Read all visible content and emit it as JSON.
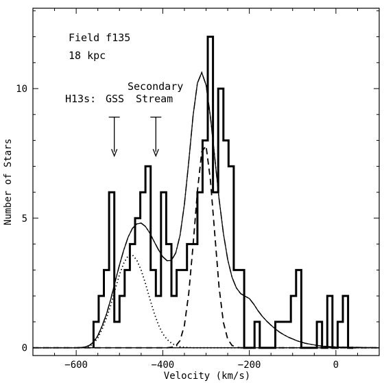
{
  "chart_data": {
    "type": "bar",
    "subtype": "histogram-with-model-curves",
    "xlabel": "Velocity (km/s)",
    "ylabel": "Number of Stars",
    "xlim": [
      -700,
      100
    ],
    "ylim": [
      -0.3,
      13.1
    ],
    "x_ticks": [
      -600,
      -400,
      -200,
      0
    ],
    "x_tick_labels": [
      "−600",
      "−400",
      "−200",
      "0"
    ],
    "y_ticks": [
      0,
      5,
      10
    ],
    "y_tick_labels": [
      "0",
      "5",
      "10"
    ],
    "bin_width": 12,
    "bin_edges": [
      -560,
      -548,
      -536,
      -524,
      -512,
      -500,
      -488,
      -476,
      -464,
      -452,
      -440,
      -428,
      -416,
      -404,
      -392,
      -380,
      -368,
      -356,
      -344,
      -332,
      -320,
      -308,
      -296,
      -284,
      -272,
      -260,
      -248,
      -236,
      -224,
      -212,
      -200,
      -188,
      -176,
      -164,
      -152,
      -140,
      -128,
      -116,
      -104,
      -92,
      -80,
      -68,
      -56,
      -44,
      -32,
      -20,
      -8,
      4,
      16,
      28,
      40
    ],
    "bin_counts": [
      1,
      2,
      3,
      6,
      1,
      2,
      3,
      4,
      5,
      6,
      7,
      3,
      2,
      6,
      4,
      2,
      3,
      3,
      4,
      4,
      6,
      8,
      12,
      6,
      10,
      8,
      7,
      3,
      3,
      0,
      0,
      1,
      0,
      0,
      0,
      1,
      1,
      1,
      2,
      3,
      0,
      0,
      0,
      1,
      0,
      2,
      0,
      1,
      2,
      0
    ],
    "series": [
      {
        "style": "solid",
        "values": [
          0.0,
          0.01,
          0.03,
          0.09,
          0.22,
          0.47,
          0.85,
          1.3,
          1.88,
          2.55,
          3.2,
          3.78,
          4.27,
          4.61,
          4.78,
          4.81,
          4.68,
          4.43,
          4.1,
          3.78,
          3.51,
          3.36,
          3.37,
          3.66,
          4.34,
          5.53,
          7.19,
          8.96,
          10.21,
          10.62,
          10.14,
          8.93,
          7.36,
          5.76,
          4.41,
          3.4,
          2.72,
          2.31,
          2.09,
          1.99,
          1.9,
          1.69,
          1.43,
          1.21,
          1.03,
          0.87,
          0.73,
          0.6,
          0.5,
          0.41,
          0.34,
          0.27,
          0.22,
          0.17,
          0.14,
          0.11,
          0.08,
          0.06,
          0.05,
          0.04,
          0.03
        ]
      },
      {
        "style": "dotted",
        "values": [
          0,
          0,
          0.01,
          0.05,
          0.17,
          0.38,
          0.72,
          1.15,
          1.65,
          2.25,
          2.83,
          3.27,
          3.55,
          3.58,
          3.38,
          3.0,
          2.48,
          1.9,
          1.34,
          0.88,
          0.54,
          0.32,
          0.18,
          0.09,
          0.04,
          0.02,
          0.01,
          0,
          0,
          0,
          0,
          0,
          0,
          0,
          0,
          0,
          0,
          0,
          0,
          0,
          0,
          0,
          0,
          0,
          0,
          0,
          0,
          0,
          0,
          0,
          0,
          0,
          0,
          0,
          0,
          0,
          0,
          0,
          0,
          0,
          0
        ]
      },
      {
        "style": "dashed",
        "values": [
          0,
          0,
          0,
          0,
          0,
          0,
          0,
          0,
          0,
          0,
          0,
          0,
          0,
          0,
          0,
          0,
          0,
          0,
          0,
          0,
          0,
          0,
          0.02,
          0.07,
          0.28,
          0.86,
          2.11,
          3.96,
          6.04,
          7.56,
          7.79,
          6.49,
          4.43,
          2.36,
          0.98,
          0.33,
          0.09,
          0.02,
          0,
          0,
          0,
          0,
          0,
          0,
          0,
          0,
          0,
          0,
          0,
          0,
          0,
          0,
          0,
          0,
          0,
          0,
          0,
          0,
          0,
          0,
          0
        ]
      },
      {
        "style": "dashdot",
        "values": [
          0.0,
          0.01,
          0.03,
          0.09,
          0.22,
          0.47,
          0.85,
          1.3,
          1.88,
          2.55,
          3.2,
          3.78,
          4.27,
          4.61,
          4.78,
          4.81,
          4.68,
          4.43,
          4.1,
          3.78,
          3.51,
          3.36,
          3.37,
          3.66,
          4.34,
          5.53,
          7.19,
          8.96,
          10.21,
          10.62,
          10.14,
          8.93,
          7.36,
          5.76,
          4.41,
          3.4,
          2.72,
          2.31,
          2.09,
          1.99,
          1.9,
          1.69,
          1.43,
          1.21,
          1.03,
          0.87,
          0.73,
          0.6,
          0.5,
          0.41,
          0.34,
          0.27,
          0.22,
          0.17,
          0.14,
          0.11,
          0.08,
          0.06,
          0.05,
          0.04,
          0.03
        ]
      }
    ],
    "curve_x_start": -600,
    "curve_x_step": 10,
    "annotations": {
      "field_line1": "Field f135",
      "field_line2": "18 kpc",
      "h13s_label": "H13s:",
      "gss_label": "GSS",
      "secondary_line1": "Secondary",
      "secondary_line2": "Stream",
      "gss_arrow_x": -512,
      "secondary_arrow_x": -416,
      "arrow_top_y": 8.9,
      "arrow_tip_y": 7.4
    },
    "grid": false
  }
}
